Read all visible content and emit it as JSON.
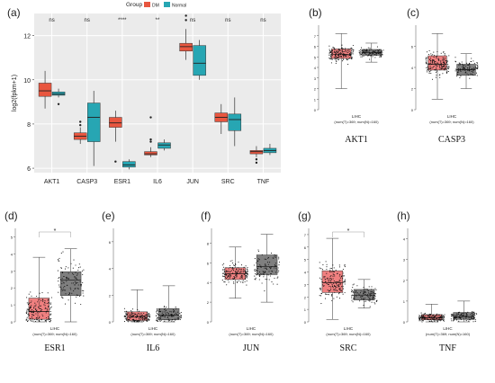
{
  "panels": {
    "a": {
      "letter": "(a)"
    },
    "b": {
      "letter": "(b)"
    },
    "c": {
      "letter": "(c)"
    },
    "d": {
      "letter": "(d)"
    },
    "e": {
      "letter": "(e)"
    },
    "f": {
      "letter": "(f)"
    },
    "g": {
      "letter": "(g)"
    },
    "h": {
      "letter": "(h)"
    }
  },
  "colors": {
    "tumor": "#e8563f",
    "normal": "#27a6b3",
    "gepia_tumor": "#f08080",
    "gepia_normal": "#7f7f7f",
    "sig_star": "#e02020"
  },
  "chart_data": [
    {
      "panel": "a",
      "type": "box",
      "legend_title": "Group",
      "legend": [
        "DM",
        "Normal"
      ],
      "ylabel": "log2(fpkm+1)",
      "ylim": [
        5.8,
        13
      ],
      "yticks": [
        6,
        8,
        10,
        12
      ],
      "categories": [
        "AKT1",
        "CASP3",
        "ESR1",
        "IL6",
        "JUN",
        "SRC",
        "TNF"
      ],
      "significance": [
        "ns",
        "ns",
        "****",
        "**",
        "ns",
        "ns",
        "ns"
      ],
      "series": [
        {
          "name": "DM",
          "boxes": [
            {
              "min": 8.7,
              "q1": 9.25,
              "median": 9.5,
              "q3": 9.85,
              "max": 10.4,
              "outliers": []
            },
            {
              "min": 7.1,
              "q1": 7.3,
              "median": 7.45,
              "q3": 7.6,
              "max": 7.85,
              "outliers": [
                8.1,
                7.95
              ]
            },
            {
              "min": 7.2,
              "q1": 7.85,
              "median": 8.05,
              "q3": 8.3,
              "max": 8.6,
              "outliers": [
                6.3
              ]
            },
            {
              "min": 6.5,
              "q1": 6.6,
              "median": 6.65,
              "q3": 6.75,
              "max": 6.95,
              "outliers": [
                8.3,
                7.3,
                7.2
              ]
            },
            {
              "min": 10.9,
              "q1": 11.3,
              "median": 11.5,
              "q3": 11.65,
              "max": 12.3,
              "outliers": [
                12.9,
                12.7
              ]
            },
            {
              "min": 7.55,
              "q1": 8.1,
              "median": 8.3,
              "q3": 8.5,
              "max": 8.9,
              "outliers": []
            },
            {
              "min": 6.5,
              "q1": 6.65,
              "median": 6.75,
              "q3": 6.8,
              "max": 7.0,
              "outliers": [
                6.25,
                6.4
              ]
            }
          ]
        },
        {
          "name": "Normal",
          "boxes": [
            {
              "min": 9.2,
              "q1": 9.3,
              "median": 9.35,
              "q3": 9.45,
              "max": 9.6,
              "outliers": [
                8.9
              ]
            },
            {
              "min": 6.1,
              "q1": 7.2,
              "median": 8.3,
              "q3": 8.95,
              "max": 9.5,
              "outliers": []
            },
            {
              "min": 5.95,
              "q1": 6.05,
              "median": 6.15,
              "q3": 6.3,
              "max": 6.4,
              "outliers": []
            },
            {
              "min": 6.8,
              "q1": 6.9,
              "median": 7.05,
              "q3": 7.15,
              "max": 7.3,
              "outliers": []
            },
            {
              "min": 10.0,
              "q1": 10.2,
              "median": 10.75,
              "q3": 11.55,
              "max": 11.8,
              "outliers": []
            },
            {
              "min": 7.0,
              "q1": 7.7,
              "median": 8.2,
              "q3": 8.45,
              "max": 9.2,
              "outliers": []
            },
            {
              "min": 6.6,
              "q1": 6.7,
              "median": 6.8,
              "q3": 6.9,
              "max": 7.1,
              "outliers": []
            }
          ]
        }
      ]
    },
    {
      "panel": "b",
      "type": "box",
      "gene": "AKT1",
      "dataset": "LIHC",
      "counts": "(num(T)=369; num(N)=160)",
      "ylim": [
        0,
        8
      ],
      "yticks": [
        0,
        1,
        2,
        3,
        4,
        5,
        6,
        7
      ],
      "significant": false,
      "tumor": {
        "min": 2.0,
        "q1": 4.85,
        "median": 5.25,
        "q3": 5.75,
        "max": 7.2
      },
      "normal": {
        "min": 4.5,
        "q1": 5.15,
        "median": 5.4,
        "q3": 5.7,
        "max": 6.3
      }
    },
    {
      "panel": "c",
      "type": "box",
      "gene": "CASP3",
      "dataset": "LIHC",
      "counts": "(num(T)=369; num(N)=160)",
      "ylim": [
        0,
        8
      ],
      "yticks": [
        0,
        2,
        4,
        6
      ],
      "significant": false,
      "tumor": {
        "min": 1.0,
        "q1": 3.75,
        "median": 4.3,
        "q3": 5.1,
        "max": 7.2
      },
      "normal": {
        "min": 2.0,
        "q1": 3.25,
        "median": 3.8,
        "q3": 4.3,
        "max": 5.3
      }
    },
    {
      "panel": "d",
      "type": "box",
      "gene": "ESR1",
      "dataset": "LIHC",
      "counts": "(num(T)=369; num(N)=160)",
      "ylim": [
        0,
        5.5
      ],
      "yticks": [
        0,
        1,
        2,
        3,
        4,
        5
      ],
      "significant": true,
      "tumor": {
        "min": 0.0,
        "q1": 0.15,
        "median": 0.6,
        "q3": 1.4,
        "max": 3.8
      },
      "normal": {
        "min": 0.0,
        "q1": 1.55,
        "median": 2.45,
        "q3": 2.95,
        "max": 4.3
      }
    },
    {
      "panel": "e",
      "type": "box",
      "gene": "IL6",
      "dataset": "LIHC",
      "counts": "(num(T)=369; num(N)=160)",
      "ylim": [
        0,
        7
      ],
      "yticks": [
        0,
        2,
        4,
        6
      ],
      "significant": false,
      "tumor": {
        "min": 0.0,
        "q1": 0.1,
        "median": 0.35,
        "q3": 0.75,
        "max": 2.4
      },
      "normal": {
        "min": 0.0,
        "q1": 0.15,
        "median": 0.5,
        "q3": 1.0,
        "max": 2.7
      }
    },
    {
      "panel": "f",
      "type": "box",
      "gene": "JUN",
      "dataset": "LIHC",
      "counts": "(num(T)=369; num(N)=160)",
      "ylim": [
        0,
        9.5
      ],
      "yticks": [
        0,
        2,
        4,
        6,
        8
      ],
      "significant": false,
      "tumor": {
        "min": 2.4,
        "q1": 4.3,
        "median": 4.9,
        "q3": 5.5,
        "max": 7.6
      },
      "normal": {
        "min": 2.0,
        "q1": 4.8,
        "median": 5.6,
        "q3": 6.8,
        "max": 8.9
      }
    },
    {
      "panel": "g",
      "type": "box",
      "gene": "SRC",
      "dataset": "LIHC",
      "counts": "(num(T)=369; num(N)=160)",
      "ylim": [
        0,
        7.5
      ],
      "yticks": [
        0,
        1,
        2,
        3,
        4,
        5,
        6,
        7
      ],
      "significant": true,
      "tumor": {
        "min": 0.2,
        "q1": 2.35,
        "median": 3.15,
        "q3": 4.1,
        "max": 6.7
      },
      "normal": {
        "min": 1.1,
        "q1": 1.75,
        "median": 2.15,
        "q3": 2.6,
        "max": 3.4
      }
    },
    {
      "panel": "h",
      "type": "box",
      "gene": "TNF",
      "dataset": "LIHC",
      "counts": "(num(T)=369; num(N)=160)",
      "ylim": [
        0,
        4.5
      ],
      "yticks": [
        0,
        1,
        2,
        3,
        4
      ],
      "significant": false,
      "tumor": {
        "min": 0.0,
        "q1": 0.1,
        "median": 0.2,
        "q3": 0.35,
        "max": 0.85
      },
      "normal": {
        "min": 0.0,
        "q1": 0.12,
        "median": 0.25,
        "q3": 0.45,
        "max": 1.0
      }
    }
  ]
}
